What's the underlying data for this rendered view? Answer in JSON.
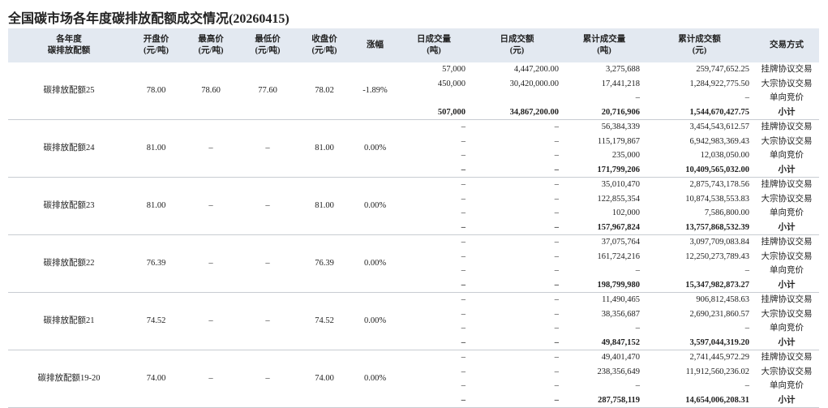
{
  "title": "全国碳市场各年度碳排放配额成交情况(20260415)",
  "columns": [
    [
      "各年度",
      "碳排放配额"
    ],
    [
      "开盘价",
      "(元/吨)"
    ],
    [
      "最高价",
      "(元/吨)"
    ],
    [
      "最低价",
      "(元/吨)"
    ],
    [
      "收盘价",
      "(元/吨)"
    ],
    [
      "涨幅"
    ],
    [
      "日成交量",
      "(吨)"
    ],
    [
      "日成交额",
      "(元)"
    ],
    [
      "累计成交量",
      "(吨)"
    ],
    [
      "累计成交额",
      "(元)"
    ],
    [
      "交易方式"
    ]
  ],
  "groups": [
    {
      "name": "碳排放配额25",
      "open": "78.00",
      "high": "78.60",
      "low": "77.60",
      "close": "78.02",
      "change": "-1.89%",
      "rows": [
        [
          "57,000",
          "4,447,200.00",
          "3,275,688",
          "259,747,652.25",
          "挂牌协议交易"
        ],
        [
          "450,000",
          "30,420,000.00",
          "17,441,218",
          "1,284,922,775.50",
          "大宗协议交易"
        ],
        [
          null,
          null,
          "–",
          "–",
          "单向竞价"
        ],
        [
          "507,000",
          "34,867,200.00",
          "20,716,906",
          "1,544,670,427.75",
          "小计"
        ]
      ]
    },
    {
      "name": "碳排放配额24",
      "open": "81.00",
      "high": "–",
      "low": "–",
      "close": "81.00",
      "change": "0.00%",
      "rows": [
        [
          "–",
          "–",
          "56,384,339",
          "3,454,543,612.57",
          "挂牌协议交易"
        ],
        [
          "–",
          "–",
          "115,179,867",
          "6,942,983,369.43",
          "大宗协议交易"
        ],
        [
          "–",
          "–",
          "235,000",
          "12,038,050.00",
          "单向竞价"
        ],
        [
          "–",
          "–",
          "171,799,206",
          "10,409,565,032.00",
          "小计"
        ]
      ]
    },
    {
      "name": "碳排放配额23",
      "open": "81.00",
      "high": "–",
      "low": "–",
      "close": "81.00",
      "change": "0.00%",
      "rows": [
        [
          "–",
          "–",
          "35,010,470",
          "2,875,743,178.56",
          "挂牌协议交易"
        ],
        [
          "–",
          "–",
          "122,855,354",
          "10,874,538,553.83",
          "大宗协议交易"
        ],
        [
          "–",
          "–",
          "102,000",
          "7,586,800.00",
          "单向竞价"
        ],
        [
          "–",
          "–",
          "157,967,824",
          "13,757,868,532.39",
          "小计"
        ]
      ]
    },
    {
      "name": "碳排放配额22",
      "open": "76.39",
      "high": "–",
      "low": "–",
      "close": "76.39",
      "change": "0.00%",
      "rows": [
        [
          "–",
          "–",
          "37,075,764",
          "3,097,709,083.84",
          "挂牌协议交易"
        ],
        [
          "–",
          "–",
          "161,724,216",
          "12,250,273,789.43",
          "大宗协议交易"
        ],
        [
          "–",
          "–",
          "–",
          "–",
          "单向竞价"
        ],
        [
          "–",
          "–",
          "198,799,980",
          "15,347,982,873.27",
          "小计"
        ]
      ]
    },
    {
      "name": "碳排放配额21",
      "open": "74.52",
      "high": "–",
      "low": "–",
      "close": "74.52",
      "change": "0.00%",
      "rows": [
        [
          "–",
          "–",
          "11,490,465",
          "906,812,458.63",
          "挂牌协议交易"
        ],
        [
          "–",
          "–",
          "38,356,687",
          "2,690,231,860.57",
          "大宗协议交易"
        ],
        [
          "–",
          "–",
          "–",
          "–",
          "单向竞价"
        ],
        [
          "–",
          "–",
          "49,847,152",
          "3,597,044,319.20",
          "小计"
        ]
      ]
    },
    {
      "name": "碳排放配额19-20",
      "open": "74.00",
      "high": "–",
      "low": "–",
      "close": "74.00",
      "change": "0.00%",
      "rows": [
        [
          "–",
          "–",
          "49,401,470",
          "2,741,445,972.29",
          "挂牌协议交易"
        ],
        [
          "–",
          "–",
          "238,356,649",
          "11,912,560,236.02",
          "大宗协议交易"
        ],
        [
          "–",
          "–",
          "–",
          "–",
          "单向竞价"
        ],
        [
          "–",
          "–",
          "287,758,119",
          "14,654,006,208.31",
          "小计"
        ]
      ]
    }
  ]
}
